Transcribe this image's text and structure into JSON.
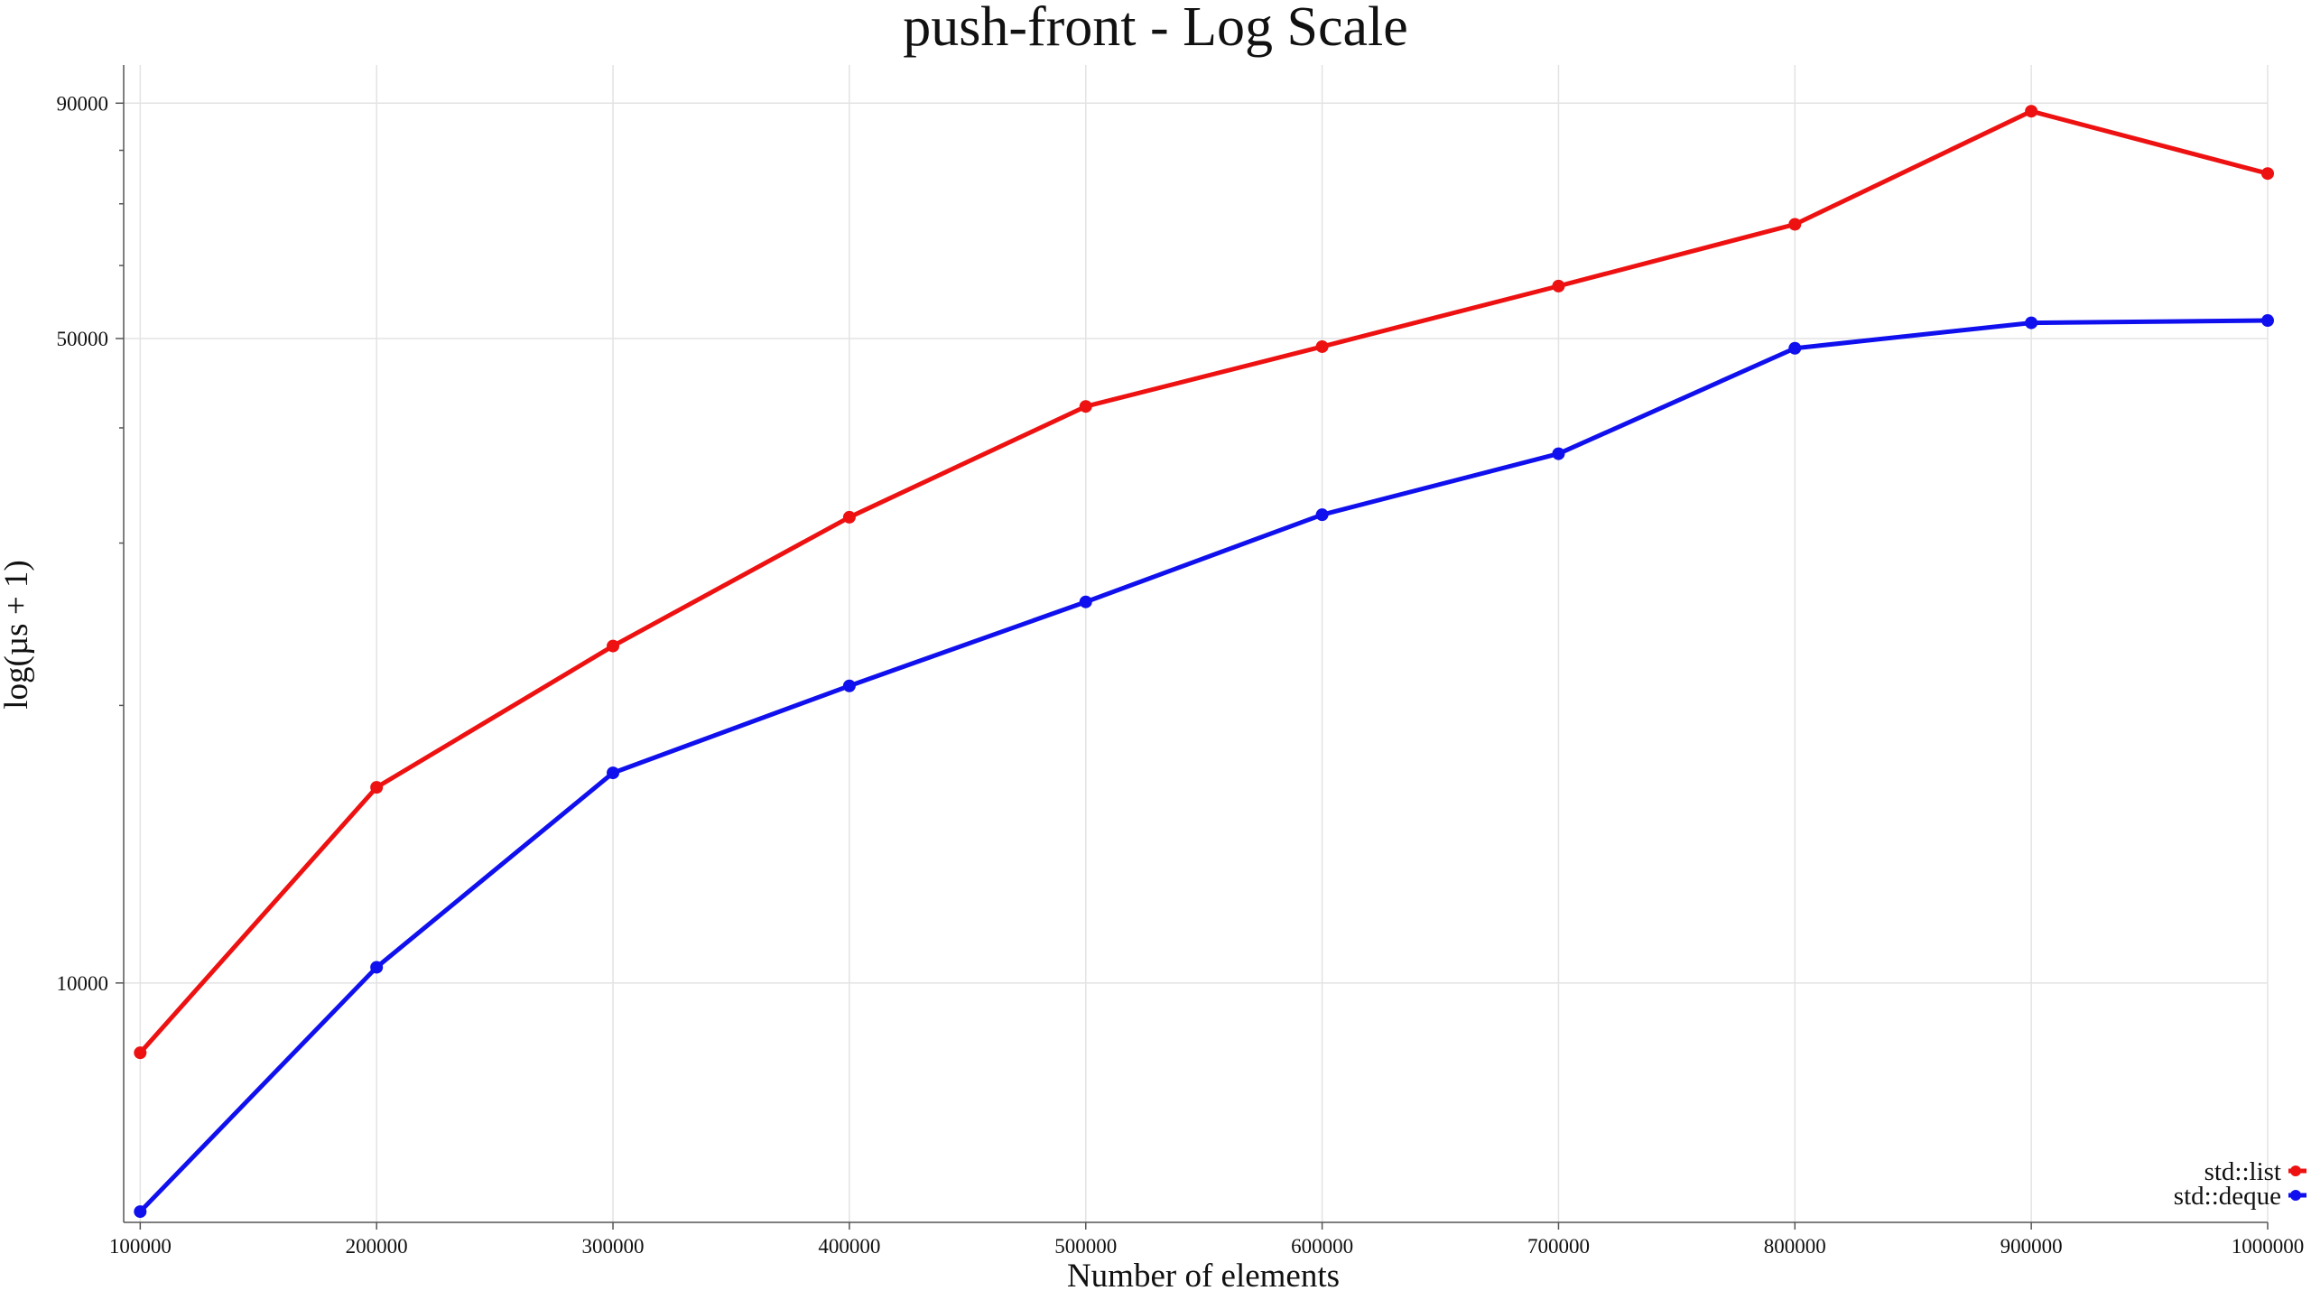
{
  "chart_data": {
    "type": "line",
    "title": "push-front - Log Scale",
    "xlabel": "Number of elements",
    "ylabel": "log(µs + 1)",
    "y_scale": "log",
    "x": [
      100000,
      200000,
      300000,
      400000,
      500000,
      600000,
      700000,
      800000,
      900000,
      1000000
    ],
    "x_tick_labels": [
      "100000",
      "200000",
      "300000",
      "400000",
      "500000",
      "600000",
      "700000",
      "800000",
      "900000",
      "1000000"
    ],
    "y_tick_values": [
      10000,
      50000,
      90000
    ],
    "y_tick_labels": [
      "10000",
      "50000",
      "90000"
    ],
    "y_minor_ticks": [
      20000,
      30000,
      40000,
      60000,
      70000,
      80000
    ],
    "xlim": [
      93000,
      1000000
    ],
    "ylim": [
      5500,
      99000
    ],
    "grid": true,
    "legend_position": "bottom-right",
    "series": [
      {
        "name": "std::list",
        "color": "#ee1111",
        "values": [
          8400,
          16300,
          23200,
          32000,
          42200,
          49000,
          57000,
          66500,
          88200,
          75500
        ]
      },
      {
        "name": "std::deque",
        "color": "#1010ee",
        "values": [
          5650,
          10400,
          16900,
          21000,
          25900,
          32200,
          37500,
          48800,
          52000,
          52300
        ]
      }
    ]
  }
}
